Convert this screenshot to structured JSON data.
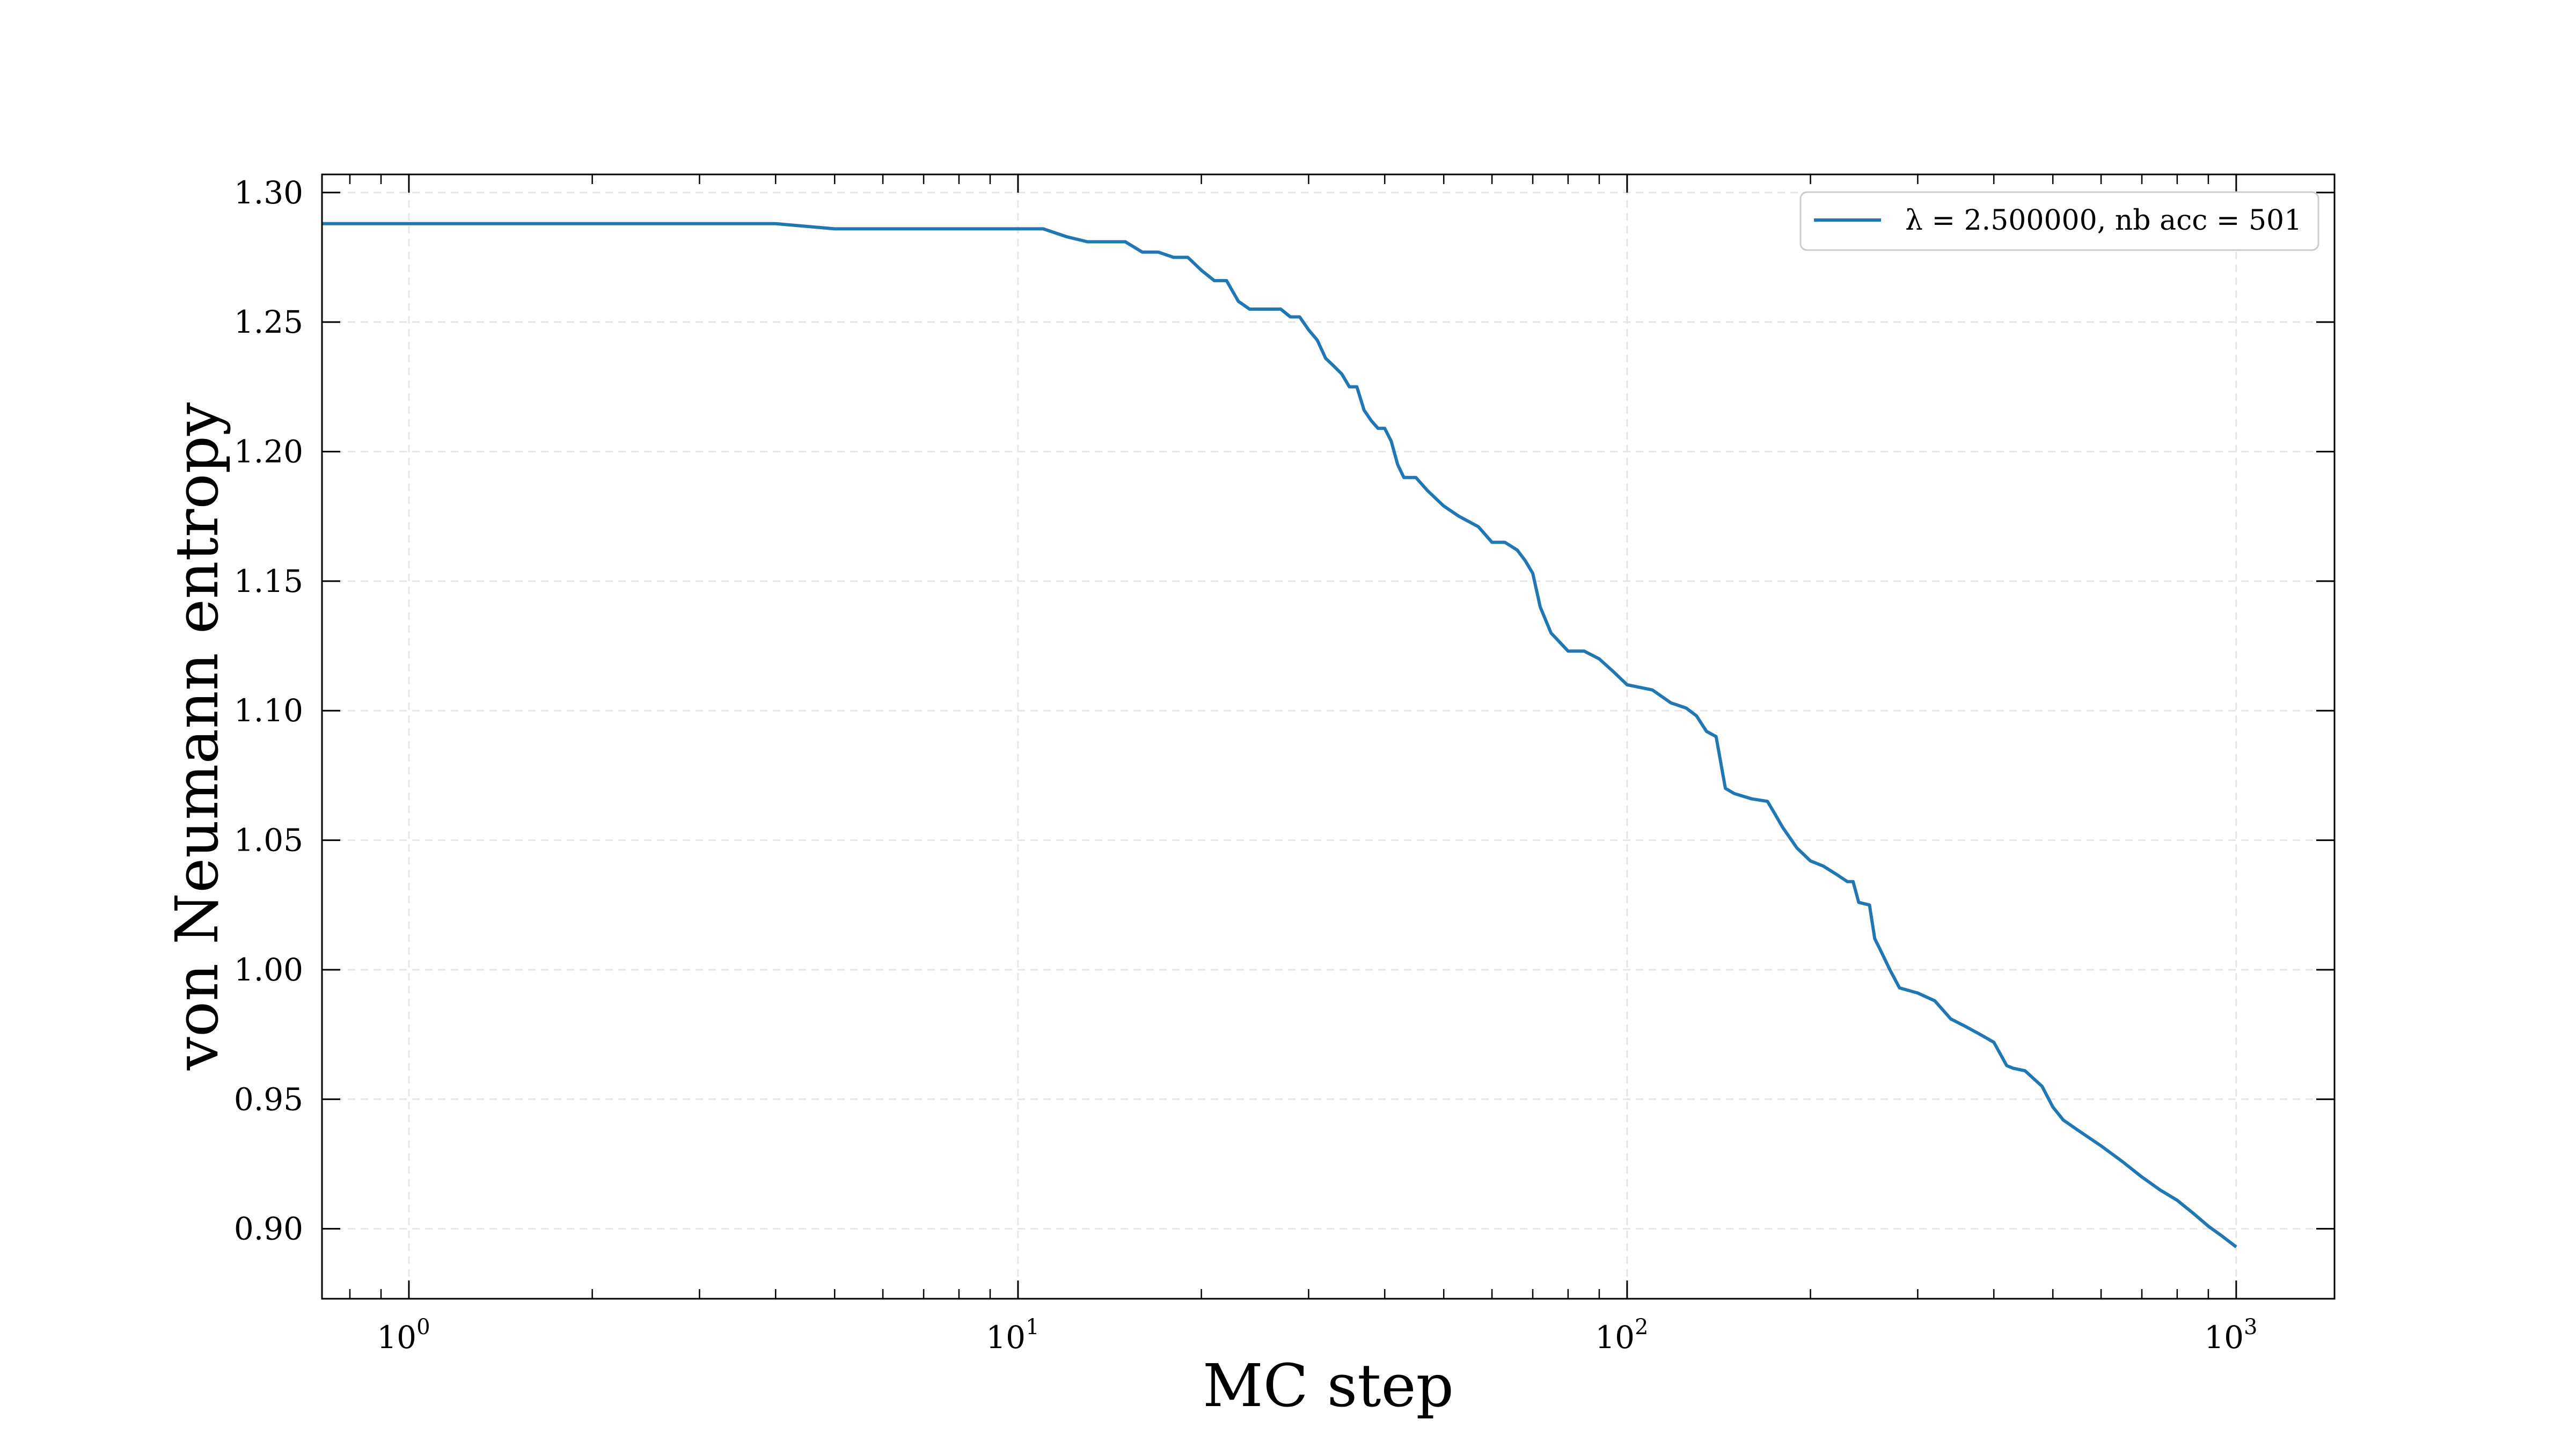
{
  "chart_data": {
    "type": "line",
    "xlabel": "MC step",
    "ylabel": "von Neumann entropy",
    "xscale": "log",
    "xlim": [
      0.72,
      1450
    ],
    "ylim": [
      0.873,
      1.307
    ],
    "xticks": [
      {
        "value": 1,
        "base": "10",
        "exp": "0"
      },
      {
        "value": 10,
        "base": "10",
        "exp": "1"
      },
      {
        "value": 100,
        "base": "10",
        "exp": "2"
      },
      {
        "value": 1000,
        "base": "10",
        "exp": "3"
      }
    ],
    "yticks": [
      0.9,
      0.95,
      1.0,
      1.05,
      1.1,
      1.15,
      1.2,
      1.25,
      1.3
    ],
    "ytick_labels": [
      "0.90",
      "0.95",
      "1.00",
      "1.05",
      "1.10",
      "1.15",
      "1.20",
      "1.25",
      "1.30"
    ],
    "grid": true,
    "legend_position": "top-right",
    "series": [
      {
        "name": "λ = 2.500000, nb acc = 501",
        "color": "#1f77b4",
        "x": [
          0.72,
          1,
          2,
          3,
          4,
          5,
          6,
          7,
          8,
          9,
          10,
          11,
          12,
          13,
          14,
          15,
          16,
          17,
          18,
          19,
          20,
          21,
          22,
          23,
          24,
          25,
          27,
          28,
          29,
          30,
          31,
          32,
          33,
          34,
          35,
          36,
          37,
          38,
          39,
          40,
          41,
          42,
          43,
          45,
          47,
          50,
          53,
          57,
          60,
          63,
          66,
          68,
          70,
          72,
          75,
          80,
          85,
          90,
          95,
          100,
          110,
          118,
          125,
          130,
          135,
          140,
          145,
          150,
          160,
          170,
          175,
          180,
          190,
          200,
          210,
          220,
          230,
          235,
          240,
          250,
          255,
          260,
          270,
          280,
          300,
          320,
          340,
          360,
          380,
          400,
          420,
          430,
          450,
          480,
          500,
          520,
          550,
          600,
          650,
          700,
          750,
          800,
          850,
          900,
          950,
          1000
        ],
        "y": [
          1.288,
          1.288,
          1.288,
          1.288,
          1.288,
          1.286,
          1.286,
          1.286,
          1.286,
          1.286,
          1.286,
          1.286,
          1.283,
          1.281,
          1.281,
          1.281,
          1.277,
          1.277,
          1.275,
          1.275,
          1.27,
          1.266,
          1.266,
          1.258,
          1.255,
          1.255,
          1.255,
          1.252,
          1.252,
          1.247,
          1.243,
          1.236,
          1.233,
          1.23,
          1.225,
          1.225,
          1.216,
          1.212,
          1.209,
          1.209,
          1.204,
          1.195,
          1.19,
          1.19,
          1.185,
          1.179,
          1.175,
          1.171,
          1.165,
          1.165,
          1.162,
          1.158,
          1.153,
          1.14,
          1.13,
          1.123,
          1.123,
          1.12,
          1.115,
          1.11,
          1.108,
          1.103,
          1.101,
          1.098,
          1.092,
          1.09,
          1.07,
          1.068,
          1.066,
          1.065,
          1.06,
          1.055,
          1.047,
          1.042,
          1.04,
          1.037,
          1.034,
          1.034,
          1.026,
          1.025,
          1.012,
          1.008,
          1.0,
          0.993,
          0.991,
          0.988,
          0.981,
          0.978,
          0.975,
          0.972,
          0.963,
          0.962,
          0.961,
          0.955,
          0.947,
          0.942,
          0.938,
          0.932,
          0.926,
          0.92,
          0.915,
          0.911,
          0.906,
          0.901,
          0.897,
          0.893
        ]
      }
    ]
  }
}
